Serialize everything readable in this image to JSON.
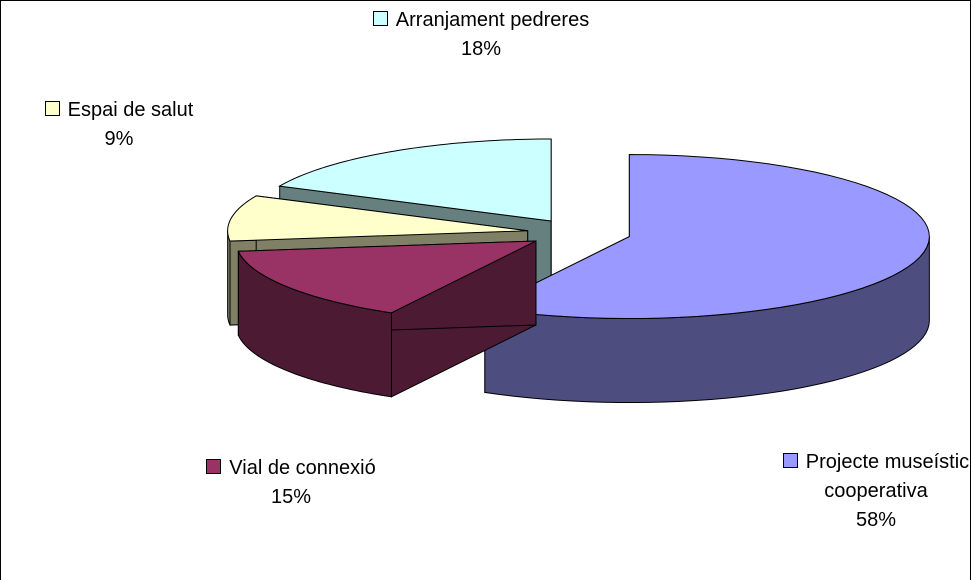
{
  "chart_data": {
    "type": "pie3d",
    "categories": [
      "Projecte museístic cooperativa",
      "Vial de connexió",
      "Espai de salut",
      "Arranjament pedreres"
    ],
    "values": [
      58,
      15,
      9,
      18
    ],
    "value_labels": [
      "58%",
      "15%",
      "9%",
      "18%"
    ],
    "colors": [
      "#9999ff",
      "#993366",
      "#ffffcc",
      "#ccffff"
    ]
  }
}
